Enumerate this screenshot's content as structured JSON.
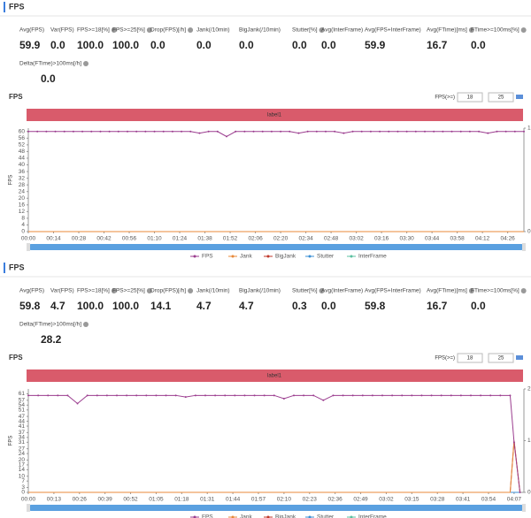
{
  "panels": [
    {
      "header": "FPS",
      "stats": [
        {
          "label": "Avg(FPS)",
          "value": "59.9"
        },
        {
          "label": "Var(FPS)",
          "value": "0.0"
        },
        {
          "label": "FPS>=18[%]",
          "value": "100.0"
        },
        {
          "label": "FPS>=25[%]",
          "value": "100.0"
        },
        {
          "label": "Drop(FPS)[/h]",
          "value": "0.0"
        },
        {
          "label": "Jank(/10min)",
          "value": "0.0"
        },
        {
          "label": "BigJank(/10min)",
          "value": "0.0"
        },
        {
          "label": "Stutter[%]",
          "value": "0.0"
        },
        {
          "label": "Avg(InterFrame)",
          "value": "0.0"
        },
        {
          "label": "Avg(FPS+InterFrame)",
          "value": "59.9"
        },
        {
          "label": "Avg(FTime)[ms]",
          "value": "16.7"
        },
        {
          "label": "FTime>=100ms[%]",
          "value": "0.0"
        },
        {
          "label": "Delta(FTime)>100ms[/h]",
          "value": "0.0"
        }
      ],
      "chart": {
        "type": "line",
        "title": "FPS",
        "threshold_label": "FPS(>=)",
        "thresholds": [
          18,
          25
        ],
        "label": "label1",
        "y_label": "FPS",
        "xlim": [
          0,
          275
        ],
        "ylim": [
          0,
          62
        ],
        "yticks": [
          0,
          4,
          8,
          12,
          16,
          20,
          24,
          28,
          32,
          36,
          40,
          44,
          48,
          52,
          56,
          60
        ],
        "y2lim": [
          0,
          1
        ],
        "y2ticks": [
          0,
          1
        ],
        "xticks": [
          {
            "value": 0,
            "label": "00:00"
          },
          {
            "value": 14,
            "label": "00:14"
          },
          {
            "value": 28,
            "label": "00:28"
          },
          {
            "value": 42,
            "label": "00:42"
          },
          {
            "value": 56,
            "label": "00:56"
          },
          {
            "value": 70,
            "label": "01:10"
          },
          {
            "value": 84,
            "label": "01:24"
          },
          {
            "value": 98,
            "label": "01:38"
          },
          {
            "value": 112,
            "label": "01:52"
          },
          {
            "value": 126,
            "label": "02:06"
          },
          {
            "value": 140,
            "label": "02:20"
          },
          {
            "value": 154,
            "label": "02:34"
          },
          {
            "value": 168,
            "label": "02:48"
          },
          {
            "value": 182,
            "label": "03:02"
          },
          {
            "value": 196,
            "label": "03:16"
          },
          {
            "value": 210,
            "label": "03:30"
          },
          {
            "value": 224,
            "label": "03:44"
          },
          {
            "value": 238,
            "label": "03:58"
          },
          {
            "value": 252,
            "label": "04:12"
          },
          {
            "value": 266,
            "label": "04:26"
          }
        ],
        "series": [
          {
            "name": "FPS",
            "color": "#9b3d8f",
            "x": [
              0,
              5,
              10,
              15,
              20,
              25,
              30,
              35,
              40,
              45,
              50,
              55,
              60,
              65,
              70,
              75,
              80,
              85,
              90,
              95,
              100,
              105,
              110,
              115,
              120,
              125,
              130,
              135,
              140,
              145,
              150,
              155,
              160,
              165,
              170,
              175,
              180,
              185,
              190,
              195,
              200,
              205,
              210,
              215,
              220,
              225,
              230,
              235,
              240,
              245,
              250,
              255,
              260,
              265,
              270,
              275
            ],
            "values": [
              60,
              60,
              60,
              60,
              60,
              60,
              60,
              60,
              60,
              60,
              60,
              60,
              60,
              60,
              60,
              60,
              60,
              60,
              60,
              59,
              60,
              60,
              57,
              60,
              60,
              60,
              60,
              60,
              60,
              60,
              59,
              60,
              60,
              60,
              60,
              59,
              60,
              60,
              60,
              60,
              60,
              60,
              60,
              60,
              60,
              60,
              60,
              60,
              60,
              60,
              60,
              59,
              60,
              60,
              60,
              60
            ]
          },
          {
            "name": "Jank",
            "color": "#e8893a",
            "axis": "y2",
            "x": [
              0,
              275
            ],
            "values": [
              0,
              0
            ]
          },
          {
            "name": "BigJank",
            "color": "#c0392b",
            "axis": "y2",
            "x": [
              0,
              275
            ],
            "values": [
              0,
              0
            ]
          },
          {
            "name": "Stutter",
            "color": "#3b8fd4",
            "axis": "y2",
            "x": [
              0,
              275
            ],
            "values": [
              0,
              0
            ]
          },
          {
            "name": "InterFrame",
            "color": "#5bc0a0",
            "axis": "y2",
            "x": [
              0,
              275
            ],
            "values": [
              0,
              0
            ]
          }
        ]
      }
    },
    {
      "header": "FPS",
      "stats": [
        {
          "label": "Avg(FPS)",
          "value": "59.8"
        },
        {
          "label": "Var(FPS)",
          "value": "4.7"
        },
        {
          "label": "FPS>=18[%]",
          "value": "100.0"
        },
        {
          "label": "FPS>=25[%]",
          "value": "100.0"
        },
        {
          "label": "Drop(FPS)[/h]",
          "value": "14.1"
        },
        {
          "label": "Jank(/10min)",
          "value": "4.7"
        },
        {
          "label": "BigJank(/10min)",
          "value": "4.7"
        },
        {
          "label": "Stutter[%]",
          "value": "0.3"
        },
        {
          "label": "Avg(InterFrame)",
          "value": "0.0"
        },
        {
          "label": "Avg(FPS+InterFrame)",
          "value": "59.8"
        },
        {
          "label": "Avg(FTime)[ms]",
          "value": "16.7"
        },
        {
          "label": "FTime>=100ms[%]",
          "value": "0.0"
        },
        {
          "label": "Delta(FTime)>100ms[/h]",
          "value": "28.2"
        }
      ],
      "chart": {
        "type": "line",
        "title": "FPS",
        "threshold_label": "FPS(>=)",
        "thresholds": [
          18,
          25
        ],
        "label": "label1",
        "y_label": "FPS",
        "xlim": [
          0,
          252
        ],
        "ylim": [
          0,
          64
        ],
        "yticks": [
          0,
          3,
          7,
          10,
          14,
          17,
          20,
          24,
          27,
          31,
          34,
          37,
          41,
          44,
          47,
          51,
          54,
          57,
          61
        ],
        "y2lim": [
          0,
          2
        ],
        "y2ticks": [
          0,
          1,
          2
        ],
        "xticks": [
          {
            "value": 0,
            "label": "00:00"
          },
          {
            "value": 13,
            "label": "00:13"
          },
          {
            "value": 26,
            "label": "00:26"
          },
          {
            "value": 39,
            "label": "00:39"
          },
          {
            "value": 52,
            "label": "00:52"
          },
          {
            "value": 65,
            "label": "01:05"
          },
          {
            "value": 78,
            "label": "01:18"
          },
          {
            "value": 91,
            "label": "01:31"
          },
          {
            "value": 104,
            "label": "01:44"
          },
          {
            "value": 117,
            "label": "01:57"
          },
          {
            "value": 130,
            "label": "02:10"
          },
          {
            "value": 143,
            "label": "02:23"
          },
          {
            "value": 156,
            "label": "02:36"
          },
          {
            "value": 169,
            "label": "02:49"
          },
          {
            "value": 182,
            "label": "03:02"
          },
          {
            "value": 195,
            "label": "03:15"
          },
          {
            "value": 208,
            "label": "03:28"
          },
          {
            "value": 221,
            "label": "03:41"
          },
          {
            "value": 234,
            "label": "03:54"
          },
          {
            "value": 247,
            "label": "04:07"
          }
        ],
        "series": [
          {
            "name": "FPS",
            "color": "#9b3d8f",
            "x": [
              0,
              5,
              10,
              15,
              20,
              25,
              30,
              35,
              40,
              45,
              50,
              55,
              60,
              65,
              70,
              75,
              80,
              85,
              90,
              95,
              100,
              105,
              110,
              115,
              120,
              125,
              130,
              135,
              140,
              145,
              150,
              155,
              160,
              165,
              170,
              175,
              180,
              185,
              190,
              195,
              200,
              205,
              210,
              215,
              220,
              225,
              230,
              235,
              240,
              245,
              247,
              250
            ],
            "values": [
              60,
              60,
              60,
              60,
              60,
              55,
              60,
              60,
              60,
              60,
              60,
              60,
              60,
              60,
              60,
              60,
              59,
              60,
              60,
              60,
              60,
              60,
              60,
              60,
              60,
              60,
              58,
              60,
              60,
              60,
              57,
              60,
              60,
              60,
              60,
              60,
              60,
              60,
              60,
              60,
              60,
              60,
              60,
              60,
              60,
              60,
              60,
              60,
              60,
              60,
              31,
              0
            ]
          },
          {
            "name": "Jank",
            "color": "#e8893a",
            "axis": "y2",
            "x": [
              0,
              245,
              247,
              250
            ],
            "values": [
              0,
              0,
              1,
              0
            ]
          },
          {
            "name": "BigJank",
            "color": "#c0392b",
            "axis": "y2",
            "x": [
              0,
              245,
              247,
              250
            ],
            "values": [
              0,
              0,
              1,
              0
            ]
          },
          {
            "name": "Stutter",
            "color": "#3b8fd4",
            "axis": "y2",
            "x": [
              0,
              250
            ],
            "values": [
              0,
              0
            ]
          },
          {
            "name": "InterFrame",
            "color": "#5bc0a0",
            "axis": "y2",
            "x": [
              0,
              250
            ],
            "values": [
              0,
              0
            ]
          }
        ]
      }
    }
  ]
}
